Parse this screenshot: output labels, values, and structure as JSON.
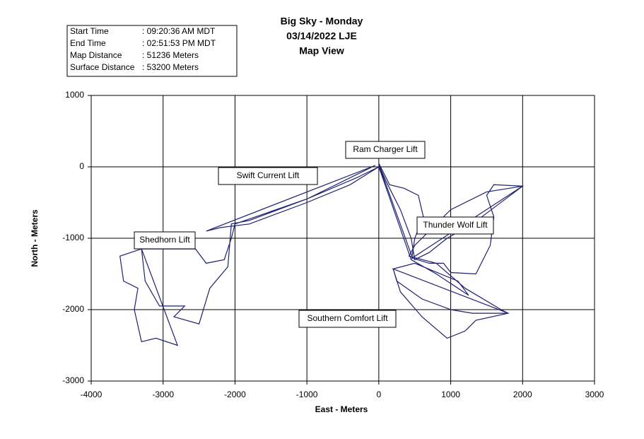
{
  "chart_data": {
    "type": "line",
    "title": [
      "Big Sky - Monday",
      "03/14/2022 LJE",
      "Map View"
    ],
    "info_box": [
      [
        "Start Time",
        ": 09:20:36 AM MDT"
      ],
      [
        "End Time",
        ": 02:51:53 PM MDT"
      ],
      [
        "Map Distance",
        ": 51236 Meters"
      ],
      [
        "Surface Distance",
        ": 53200 Meters"
      ]
    ],
    "x_label": "East - Meters",
    "y_label": "North - Meters",
    "annotations": [
      "Ram Charger Lift",
      "Swift Current Lift",
      "Shedhorn Lift",
      "Thunder Wolf Lift",
      "Southern Comfort Lift"
    ],
    "color": "#1c2170",
    "x": [
      0,
      150,
      350,
      550,
      620,
      500,
      460,
      2000,
      1600,
      1500,
      1600,
      1550,
      1350,
      1000,
      900,
      700,
      470,
      0,
      100,
      300,
      450,
      500,
      700,
      950,
      1300,
      2000,
      1500,
      1000,
      700,
      500,
      420,
      800,
      1200,
      1700,
      1800,
      200,
      300,
      600,
      950,
      1200,
      1350,
      1800,
      200,
      250,
      600,
      1000,
      1300,
      1800,
      200,
      500,
      1100,
      1250,
      800,
      450,
      0,
      -400,
      -1000,
      -1800,
      -2200,
      -2400,
      -50,
      -1000,
      -2000,
      -2050,
      -2150,
      -2400,
      -2550,
      -2800,
      -3300,
      -3600,
      -3550,
      -3350,
      -3400,
      -3300,
      -3100,
      -2800,
      -3300,
      -3250,
      -3050,
      -2700,
      -2850,
      -2500,
      -2350,
      -2100,
      -2050,
      -1800,
      -1000,
      -300,
      0
    ],
    "values": [
      50,
      -250,
      -300,
      -400,
      -700,
      -1000,
      -1280,
      -270,
      -250,
      -400,
      -700,
      -1100,
      -1500,
      -1480,
      -1350,
      -1350,
      -1280,
      30,
      -200,
      -600,
      -1000,
      -1300,
      -1200,
      -1000,
      -800,
      -270,
      -350,
      -600,
      -900,
      -1100,
      -1250,
      -1350,
      -1700,
      -2000,
      -2050,
      -1430,
      -1750,
      -2100,
      -2400,
      -2300,
      -2150,
      -2050,
      -1430,
      -1600,
      -1850,
      -2000,
      -2050,
      -2050,
      -1430,
      -1350,
      -1600,
      -1800,
      -1500,
      -1300,
      0,
      -250,
      -500,
      -800,
      -850,
      -900,
      20,
      -450,
      -800,
      -1000,
      -1300,
      -1350,
      -1150,
      -1150,
      -1150,
      -1250,
      -1600,
      -1700,
      -2000,
      -2450,
      -2400,
      -2500,
      -1150,
      -1600,
      -1950,
      -1950,
      -2100,
      -2200,
      -1700,
      -1400,
      -800,
      -750,
      -450,
      -150,
      0
    ],
    "xlim": [
      -4000,
      3000
    ],
    "ylim": [
      -3000,
      1000
    ],
    "xticks": [
      -4000,
      -3000,
      -2000,
      -1000,
      0,
      1000,
      2000,
      3000
    ],
    "yticks": [
      -3000,
      -2000,
      -1000,
      0,
      1000
    ],
    "grid": true
  }
}
